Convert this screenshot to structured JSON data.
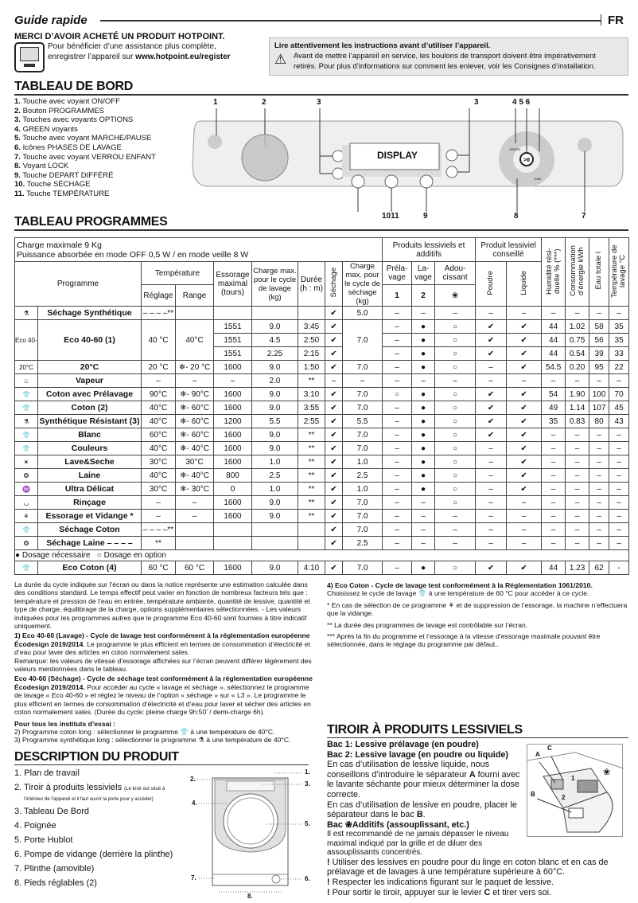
{
  "header": {
    "title": "Guide rapide",
    "lang": "FR"
  },
  "thanks": {
    "title": "MERCI D’AVOIR ACHETÉ UN PRODUIT HOTPOINT.",
    "line1": "Pour bénéficier d’une assistance plus complète,",
    "line2_prefix": "enregistrer l’appareil sur ",
    "url": "www.hotpoint.eu/register",
    "icon": "computer-icon"
  },
  "warning": {
    "title": "Lire attentivement les instructions avant d’utiliser l’appareil.",
    "text1": "Avant de mettre l’appareil en service, les boulons de transport doivent être impérativement",
    "text2": "retirés. Pour plus d’informations sur comment les enlever, voir les Consignes d’installation.",
    "icon": "warning-triangle-icon"
  },
  "dashboard": {
    "title": "TABLEAU DE BORD",
    "items": [
      {
        "n": "1.",
        "label": "Touche avec voyant ON/OFF"
      },
      {
        "n": "2.",
        "label": "Bouton PROGRAMMES"
      },
      {
        "n": "3.",
        "label": "Touches avec voyants OPTIONS"
      },
      {
        "n": "4.",
        "label": "GREEN voyants"
      },
      {
        "n": "5.",
        "label": "Touche avec voyant MARCHE/PAUSE"
      },
      {
        "n": "6.",
        "label": "Icônes  PHASES DE LAVAGE"
      },
      {
        "n": "7.",
        "label": "Touche avec voyant VERROU ENFANT"
      },
      {
        "n": "8.",
        "label": "Voyant LOCK"
      },
      {
        "n": "9.",
        "label": "Touche DEPART DIFFÉRÉ"
      },
      {
        "n": "10.",
        "label": "Touche SÉCHAGE"
      },
      {
        "n": "11.",
        "label": "Touche TEMPÉRATURE"
      }
    ],
    "diagram": {
      "display": "DISPLAY",
      "green": "GREEN",
      "end": "END",
      "callouts": {
        "c1": "1",
        "c2": "2",
        "c3a": "3",
        "c3b": "3",
        "c456": "4 5 6",
        "c1011": "1011",
        "c9": "9",
        "c8": "8",
        "c7": "7"
      }
    }
  },
  "programs": {
    "title": "TABLEAU PROGRAMMES",
    "head": {
      "max_load": "Charge maximale 9 Kg",
      "power": "Puissance absorbée en mode OFF 0,5 W / en mode veille 8 W",
      "detergents": "Produits lessiviels et additifs",
      "recommended": "Produit lessiviel conseillé",
      "humidity": "Humidité rési-duelle % (***)",
      "energy": "Consommation d’énergie kWh",
      "water": "Eau totale l",
      "wash_temp": "Température de lavage °C",
      "programme": "Programme",
      "temperature": "Température",
      "setting": "Réglage",
      "range": "Range",
      "spin": "Essorage maximal (tours)",
      "load": "Charge max. pour le cycle de lavage (kg)",
      "duration": "Durée (h : m)",
      "drying": "Séchage",
      "dry_load": "Charge max. pour le cycle de séchage (kg)",
      "prewash": "Préla-vage",
      "wash": "La-vage",
      "softener": "Adou-cissant",
      "c1": "1",
      "c2": "2",
      "c3": "❀",
      "powder": "Poudre",
      "liquid": "Liquide"
    },
    "rows": [
      {
        "icon": "drying-synthetic-icon",
        "glyph": "⚗",
        "name": "Séchage Synthétique",
        "set": "– – – –**",
        "range": "",
        "cycles": [
          {
            "spin": "",
            "load": "",
            "dur": "",
            "dry": "✔",
            "hum": "–",
            "cons": "–",
            "eau": "–",
            "temp": "–"
          }
        ],
        "dry_load": "5.0",
        "pre": "–",
        "lav": "–",
        "adou": "–",
        "pou": "–",
        "liq": "–"
      },
      {
        "icon": "eco-40-60-icon",
        "glyph": "Eco 40-60",
        "name": "Eco 40-60 (1)",
        "set": "40 °C",
        "range": "40°C",
        "cycles": [
          {
            "spin": "1551",
            "load": "9.0",
            "dur": "3:45",
            "dry": "✔",
            "hum": "44",
            "cons": "1.02",
            "eau": "58",
            "temp": "35"
          },
          {
            "spin": "1551",
            "load": "4.5",
            "dur": "2:50",
            "dry": "✔",
            "hum": "44",
            "cons": "0.75",
            "eau": "56",
            "temp": "35"
          },
          {
            "spin": "1551",
            "load": "2.25",
            "dur": "2:15",
            "dry": "✔",
            "hum": "44",
            "cons": "0.54",
            "eau": "39",
            "temp": "33"
          }
        ],
        "dry_load": "7.0",
        "pre": "–",
        "lav": "●",
        "adou": "○",
        "pou": "✔",
        "liq": "✔"
      },
      {
        "icon": "20c-icon",
        "glyph": "20°C",
        "name": "20°C",
        "set": "20 °C",
        "range": "❄- 20 °C",
        "cycles": [
          {
            "spin": "1600",
            "load": "9.0",
            "dur": "1:50",
            "dry": "✔",
            "hum": "54.5",
            "cons": "0.20",
            "eau": "95",
            "temp": "22"
          }
        ],
        "dry_load": "7.0",
        "pre": "–",
        "lav": "●",
        "adou": "○",
        "pou": "–",
        "liq": "✔"
      },
      {
        "icon": "steam-icon",
        "glyph": "♨",
        "name": "Vapeur",
        "set": "–",
        "range": "–",
        "cycles": [
          {
            "spin": "–",
            "load": "2.0",
            "dur": "**",
            "dry": "–",
            "hum": "–",
            "cons": "–",
            "eau": "–",
            "temp": "–"
          }
        ],
        "dry_load": "–",
        "pre": "–",
        "lav": "–",
        "adou": "–",
        "pou": "–",
        "liq": "–"
      },
      {
        "icon": "cotton-prewash-icon",
        "glyph": "👕",
        "name": "Coton avec Prélavage",
        "set": "90°C",
        "range": "❄- 90°C",
        "cycles": [
          {
            "spin": "1600",
            "load": "9.0",
            "dur": "3:10",
            "dry": "✔",
            "hum": "54",
            "cons": "1.90",
            "eau": "100",
            "temp": "70"
          }
        ],
        "dry_load": "7.0",
        "pre": "○",
        "lav": "●",
        "adou": "○",
        "pou": "✔",
        "liq": "✔"
      },
      {
        "icon": "cotton-icon",
        "glyph": "👕",
        "name": "Coton (2)",
        "set": "40°C",
        "range": "❄- 60°C",
        "cycles": [
          {
            "spin": "1600",
            "load": "9.0",
            "dur": "3:55",
            "dry": "✔",
            "hum": "49",
            "cons": "1.14",
            "eau": "107",
            "temp": "45"
          }
        ],
        "dry_load": "7.0",
        "pre": "–",
        "lav": "●",
        "adou": "○",
        "pou": "✔",
        "liq": "✔"
      },
      {
        "icon": "synthetic-icon",
        "glyph": "⚗",
        "name": "Synthétique Résistant (3)",
        "set": "40°C",
        "range": "❄- 60°C",
        "cycles": [
          {
            "spin": "1200",
            "load": "5.5",
            "dur": "2:55",
            "dry": "✔",
            "hum": "35",
            "cons": "0.83",
            "eau": "80",
            "temp": "43"
          }
        ],
        "dry_load": "5.5",
        "pre": "–",
        "lav": "●",
        "adou": "○",
        "pou": "✔",
        "liq": "✔"
      },
      {
        "icon": "white-icon",
        "glyph": "👕",
        "name": "Blanc",
        "set": "60°C",
        "range": "❄- 60°C",
        "cycles": [
          {
            "spin": "1600",
            "load": "9.0",
            "dur": "**",
            "dry": "✔",
            "hum": "–",
            "cons": "–",
            "eau": "–",
            "temp": "–"
          }
        ],
        "dry_load": "7.0",
        "pre": "–",
        "lav": "●",
        "adou": "○",
        "pou": "✔",
        "liq": "✔"
      },
      {
        "icon": "colours-icon",
        "glyph": "👕",
        "name": "Couleurs",
        "set": "40°C",
        "range": "❄- 40°C",
        "cycles": [
          {
            "spin": "1600",
            "load": "9.0",
            "dur": "**",
            "dry": "✔",
            "hum": "–",
            "cons": "–",
            "eau": "–",
            "temp": "–"
          }
        ],
        "dry_load": "7.0",
        "pre": "–",
        "lav": "●",
        "adou": "○",
        "pou": "–",
        "liq": "✔"
      },
      {
        "icon": "wash-dry-icon",
        "glyph": "☀",
        "name": "Lave&Seche",
        "set": "30°C",
        "range": "30°C",
        "cycles": [
          {
            "spin": "1600",
            "load": "1.0",
            "dur": "**",
            "dry": "✔",
            "hum": "–",
            "cons": "–",
            "eau": "–",
            "temp": "–"
          }
        ],
        "dry_load": "1.0",
        "pre": "–",
        "lav": "●",
        "adou": "○",
        "pou": "–",
        "liq": "✔"
      },
      {
        "icon": "wool-icon",
        "glyph": "❂",
        "name": "Laine",
        "set": "40°C",
        "range": "❄- 40°C",
        "cycles": [
          {
            "spin": "800",
            "load": "2.5",
            "dur": "**",
            "dry": "✔",
            "hum": "–",
            "cons": "–",
            "eau": "–",
            "temp": "–"
          }
        ],
        "dry_load": "2.5",
        "pre": "–",
        "lav": "●",
        "adou": "○",
        "pou": "–",
        "liq": "✔"
      },
      {
        "icon": "ultra-delicate-icon",
        "glyph": "♒",
        "name": "Ultra Délicat",
        "set": "30°C",
        "range": "❄- 30°C",
        "cycles": [
          {
            "spin": "0",
            "load": "1.0",
            "dur": "**",
            "dry": "✔",
            "hum": "–",
            "cons": "–",
            "eau": "–",
            "temp": "–"
          }
        ],
        "dry_load": "1.0",
        "pre": "–",
        "lav": "●",
        "adou": "○",
        "pou": "–",
        "liq": "✔"
      },
      {
        "icon": "rinse-icon",
        "glyph": "◡",
        "name": "Rinçage",
        "set": "–",
        "range": "–",
        "cycles": [
          {
            "spin": "1600",
            "load": "9.0",
            "dur": "**",
            "dry": "✔",
            "hum": "–",
            "cons": "–",
            "eau": "–",
            "temp": "–"
          }
        ],
        "dry_load": "7.0",
        "pre": "–",
        "lav": "–",
        "adou": "○",
        "pou": "–",
        "liq": "–"
      },
      {
        "icon": "spin-drain-icon",
        "glyph": "⚘",
        "name": "Essorage et Vidange *",
        "set": "–",
        "range": "–",
        "cycles": [
          {
            "spin": "1600",
            "load": "9.0",
            "dur": "**",
            "dry": "✔",
            "hum": "–",
            "cons": "–",
            "eau": "–",
            "temp": "–"
          }
        ],
        "dry_load": "7.0",
        "pre": "–",
        "lav": "–",
        "adou": "–",
        "pou": "–",
        "liq": "–"
      },
      {
        "icon": "drying-cotton-icon",
        "glyph": "👕",
        "name": "Séchage Coton",
        "set": "– – – –**",
        "range": "",
        "cycles": [
          {
            "spin": "",
            "load": "",
            "dur": "",
            "dry": "✔",
            "hum": "–",
            "cons": "–",
            "eau": "–",
            "temp": "–"
          }
        ],
        "dry_load": "7.0",
        "pre": "–",
        "lav": "–",
        "adou": "–",
        "pou": "–",
        "liq": "–"
      },
      {
        "icon": "drying-wool-icon",
        "glyph": "❂",
        "name": "Séchage Laine – – – –",
        "set": "**",
        "range": "",
        "cycles": [
          {
            "spin": "",
            "load": "",
            "dur": "",
            "dry": "✔",
            "hum": "–",
            "cons": "–",
            "eau": "–",
            "temp": "–"
          }
        ],
        "dry_load": "2.5",
        "pre": "–",
        "lav": "–",
        "adou": "–",
        "pou": "–",
        "liq": "–"
      }
    ],
    "legend": {
      "required": "Dosage nécessaire",
      "optional": "Dosage en option"
    },
    "eco_cotton": {
      "icon": "eco-cotton-icon",
      "glyph": "👕",
      "name": "Eco Coton (4)",
      "set": "60 °C",
      "range": "60 °C",
      "cycles": [
        {
          "spin": "1600",
          "load": "9.0",
          "dur": "4:10",
          "dry": "✔",
          "hum": "44",
          "cons": "1.23",
          "eau": "62",
          "temp": "-"
        }
      ],
      "dry_load": "7.0",
      "pre": "–",
      "lav": "●",
      "adou": "○",
      "pou": "✔",
      "liq": "✔"
    }
  },
  "notes_left": {
    "p1": "La durée du cycle indiquée sur l’écran ou dans la notice représente une estimation calculée dans des conditions standard. Le temps effectif peut varier en fonction de nombreux facteurs tels que : température et pression de l’eau en entrée, température ambiante, quantité de lessive, quantité et type de charge, équilibrage de la charge, options supplémentaires sélectionnées. - Les valeurs indiquées pour les programmes autres que le programme Eco 40-60 sont fournies à titre indicatif uniquement.",
    "n1_lead": "1) Eco 40-60 (Lavage) - ",
    "n1_bold": "Cycle de lavage test conformément à la réglementation européenne Écodesign 2019/2014",
    "n1_text": ". Le programme le plus efficient en termes de consommation d’électricité et d’eau pour laver des articles en coton normalement sales.",
    "n1_remark": "Remarque: les valeurs de vitesse d’essorage affichées sur l’écran peuvent différer légèrement des valeurs mentionnées dans le tableau.",
    "n2_lead": "Eco 40-60 (Séchage) - ",
    "n2_bold": "Cycle de séchage test conformément à la réglementation européenne Écodesign 2019/2014.",
    "n2_text": " Pour accéder au cycle « lavage et séchage », sélectionnez le programme de lavage « Eco 40-60 » et réglez le niveau de l’option « séchage » sur « L3 ». Le programme le plus efficient en termes de consommation d’électricité et d’eau pour laver et sécher des articles en coton normalement sales. (Durée du cycle: pleine charge 9h:50’ / demi-charge 6h).",
    "institutes": "Pour tous les instituts d’essai :",
    "n3": "2)  Programme coton long : sélectionner le programme 👕 à une température de 40°C.",
    "n4": "3)  Programme synthétique long : sélectionner le programme ⚗ à une température de 40°C."
  },
  "notes_right": {
    "n4_bold": "4) Eco Coton -  Cycle de lavage test conformément à la Réglementation 1061/2010.",
    "n4_text": "Choisissez le cycle de lavage 👕 à une température de 60 °C pour accéder à ce cycle.",
    "star1": "* En cas de sélection de ce programme ⚘ et de suppression de l’essorage, la machine n’effectuera que la vidange.",
    "star2": "** La durée des programmes de lavage est contrôlable sur l’écran.",
    "star3": "*** Après la fin du programme et l’essorage à la vitesse d’essorage maximale pouvant être sélectionnée, dans le réglage du programme par défaut.."
  },
  "drawer": {
    "title": "TIROIR À PRODUITS LESSIVIELS",
    "bac1": "Bac 1: Lessive prélavage (en poudre)",
    "bac2": "Bac 2: Lessive lavage (en poudre ou liquide)",
    "p1a": "En cas d’utilisation de lessive liquide, nous conseillons d’introduire le séparateur ",
    "A": "A",
    "p1b": " fourni avec le lavante séchante pour mieux déterminer la dose correcte.",
    "p2a": "En cas d’utilisation de lessive en poudre, placer le séparateur dans le bac ",
    "B": "B",
    "p2b": ".",
    "bac3": "Bac ❀Additifs (assouplissant, etc.)",
    "p3": "Il est recommandé de ne jamais dépasser le niveau maximal indiqué par la grille et de diluer des assouplissants concentrés.",
    "w1": "Utiliser des lessives en poudre pour du linge en coton blanc et en cas de prélavage et de lavages à une température supérieure à 60°C.",
    "w2": "Respecter les indications figurant sur le paquet de lessive.",
    "w3a": "Pour sortir le tiroir, appuyer sur le levier ",
    "C": "C",
    "w3b": " et tirer vers soi.",
    "excl": "!",
    "fig": {
      "a": "A",
      "b": "B",
      "c": "C",
      "one": "1",
      "two": "2"
    }
  },
  "product": {
    "title": "DESCRIPTION DU PRODUIT",
    "items": [
      "1. Plan de travail",
      "2. Tiroir à produits lessiviels",
      "3. Tableau De Bord",
      "4. Poignée",
      "5. Porte Hublot",
      "6. Pompe de vidange (derrière la plinthe)",
      "7. Plinthe (amovible)",
      "8. Pieds réglables (2)"
    ],
    "item2_note1": "(Le tiroir est situé à",
    "item2_note2": "l’intérieur de l’appareil et il faut ouvrir la porte pour y accéder)",
    "callouts": [
      "1.",
      "2.",
      "3.",
      "4.",
      "5.",
      "6.",
      "7.",
      "8."
    ]
  }
}
